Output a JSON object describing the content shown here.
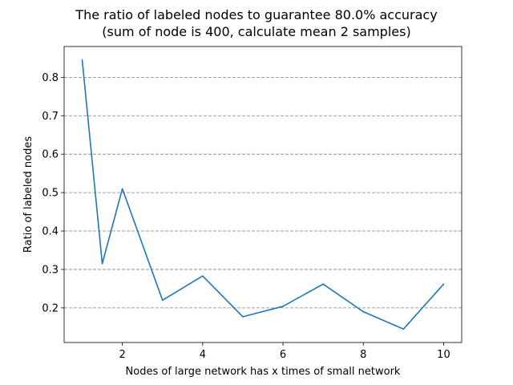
{
  "chart_data": {
    "type": "line",
    "title_line1": "The ratio of labeled nodes to guarantee 80.0% accuracy",
    "title_line2": "(sum of node is 400, calculate mean 2 samples)",
    "xlabel": "Nodes of large network has x times of small network",
    "ylabel": "Ratio of labeled nodes",
    "xlim": [
      0.55,
      10.45
    ],
    "ylim": [
      0.11,
      0.88
    ],
    "xticks": [
      2,
      4,
      6,
      8,
      10
    ],
    "xtick_labels": [
      "2",
      "4",
      "6",
      "8",
      "10"
    ],
    "yticks": [
      0.2,
      0.3,
      0.4,
      0.5,
      0.6,
      0.7,
      0.8
    ],
    "ytick_labels": [
      "0.2",
      "0.3",
      "0.4",
      "0.5",
      "0.6",
      "0.7",
      "0.8"
    ],
    "grid": "y-dashed",
    "series": [
      {
        "color": "#1f77b4",
        "x": [
          1,
          1.5,
          2,
          3,
          4,
          5,
          6,
          7,
          8,
          9,
          10
        ],
        "y": [
          0.845,
          0.315,
          0.51,
          0.22,
          0.283,
          0.177,
          0.204,
          0.262,
          0.19,
          0.145,
          0.262
        ]
      }
    ]
  }
}
